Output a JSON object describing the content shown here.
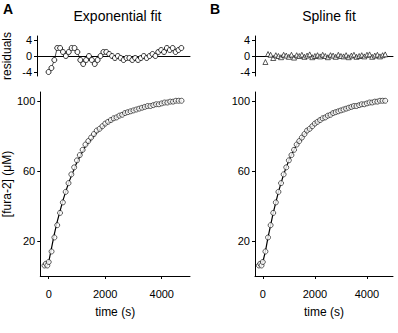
{
  "chart_data": [
    {
      "type": "line",
      "title": "Exponential fit",
      "annotations": [
        "A"
      ],
      "y_label": "residuals",
      "tick_labels": "y",
      "grid": false,
      "x": [
        100,
        200,
        300,
        400,
        500,
        600,
        700,
        800,
        900,
        1000,
        1100,
        1200,
        1300,
        1400,
        1500,
        1600,
        1700,
        1800,
        1900,
        2000,
        2100,
        2200,
        2300,
        2400,
        2500,
        2600,
        2700,
        2800,
        2900,
        3000,
        3100,
        3200,
        3300,
        3400,
        3500,
        3600,
        3700,
        3800,
        3900,
        4000,
        4100,
        4200,
        4300,
        4400,
        4500,
        4600,
        4700
      ],
      "xlim": [
        -300,
        5000
      ],
      "ylim": [
        -5,
        5
      ],
      "yticks": [
        -4,
        0,
        4
      ],
      "series": [
        {
          "type": "line",
          "marker": "circle",
          "values": [
            -4,
            -3,
            -1,
            2,
            2,
            1,
            0,
            1,
            2,
            2,
            1,
            -1,
            -2,
            -1,
            0,
            -1,
            -2,
            -1,
            0,
            1,
            1,
            0.5,
            0,
            -0.5,
            0,
            -0.5,
            -1,
            -0.5,
            -0.5,
            -1,
            -0.5,
            -1,
            -0.5,
            0,
            -0.5,
            0,
            0.5,
            0,
            1,
            1.5,
            1,
            2,
            1.5,
            2,
            1,
            1.5,
            2
          ]
        }
      ]
    },
    {
      "type": "scatter",
      "y_label": "[fura-2] (μM)",
      "x_label": "time (s)",
      "grid": false,
      "x": [
        -150,
        -100,
        -50,
        0,
        100,
        200,
        300,
        400,
        500,
        600,
        700,
        800,
        900,
        1000,
        1100,
        1200,
        1300,
        1400,
        1500,
        1600,
        1700,
        1800,
        1900,
        2000,
        2100,
        2200,
        2300,
        2400,
        2500,
        2600,
        2700,
        2800,
        2900,
        3000,
        3100,
        3200,
        3300,
        3400,
        3500,
        3600,
        3700,
        3800,
        3900,
        4000,
        4100,
        4200,
        4300,
        4400,
        4500,
        4600,
        4700
      ],
      "xlim": [
        -300,
        5000
      ],
      "xticks": [
        0,
        2000,
        4000
      ],
      "ylim": [
        0,
        105
      ],
      "yticks": [
        20,
        60,
        100
      ],
      "series": [
        {
          "type": "scatter",
          "marker": "circle",
          "values": [
            6,
            7,
            6,
            8,
            14,
            22,
            29,
            36,
            42,
            48,
            53,
            58,
            62,
            66,
            69,
            72,
            75,
            77,
            79,
            81,
            83,
            84,
            85.5,
            87,
            88,
            89,
            90,
            90.5,
            91.5,
            92,
            93,
            93.5,
            94,
            94.5,
            95,
            95.5,
            96,
            96.5,
            97,
            97,
            97.5,
            98,
            98,
            98.5,
            99,
            99,
            99.5,
            99.5,
            100,
            100,
            100
          ]
        },
        {
          "type": "line",
          "values": [
            null,
            null,
            null,
            8,
            16,
            24,
            31,
            37,
            43,
            48,
            53,
            57,
            61,
            65,
            68,
            71,
            74,
            76,
            78,
            80,
            82,
            83.5,
            85,
            86.5,
            87.5,
            88.5,
            89.5,
            90.5,
            91.5,
            92,
            93,
            93.5,
            94,
            94.5,
            95,
            95.5,
            96,
            96.5,
            97,
            97.3,
            97.6,
            98,
            98.3,
            98.6,
            98.9,
            99.1,
            99.3,
            99.5,
            99.7,
            99.8,
            100
          ]
        }
      ]
    },
    {
      "type": "scatter",
      "title": "Spline fit",
      "annotations": [
        "B"
      ],
      "tick_labels": "y",
      "grid": false,
      "x": [
        100,
        200,
        300,
        400,
        500,
        600,
        700,
        800,
        900,
        1000,
        1100,
        1200,
        1300,
        1400,
        1500,
        1600,
        1700,
        1800,
        1900,
        2000,
        2100,
        2200,
        2300,
        2400,
        2500,
        2600,
        2700,
        2800,
        2900,
        3000,
        3100,
        3200,
        3300,
        3400,
        3500,
        3600,
        3700,
        3800,
        3900,
        4000,
        4100,
        4200,
        4300,
        4400,
        4500,
        4600,
        4700
      ],
      "xlim": [
        -300,
        5000
      ],
      "ylim": [
        -5,
        5
      ],
      "yticks": [
        -4,
        0,
        4
      ],
      "series": [
        {
          "type": "scatter",
          "marker": "triangle",
          "values": [
            -1.5,
            0.5,
            0.3,
            -0.5,
            0.2,
            0,
            -0.3,
            0.3,
            0.1,
            -0.2,
            0.3,
            -0.4,
            0.2,
            0,
            0.3,
            -0.2,
            0.1,
            0.4,
            -0.3,
            0,
            0.2,
            -0.1,
            0.3,
            0,
            -0.3,
            0.2,
            0.1,
            -0.2,
            0.3,
            0,
            -0.1,
            0.2,
            -0.3,
            0.1,
            0.3,
            -0.2,
            0,
            0.2,
            -0.1,
            0.3,
            0.4,
            -0.2,
            0.1,
            0.3,
            -0.1,
            0.2,
            0.4
          ]
        }
      ]
    },
    {
      "type": "scatter",
      "x_label": "time (s)",
      "grid": false,
      "x": [
        -150,
        -100,
        -50,
        0,
        100,
        200,
        300,
        400,
        500,
        600,
        700,
        800,
        900,
        1000,
        1100,
        1200,
        1300,
        1400,
        1500,
        1600,
        1700,
        1800,
        1900,
        2000,
        2100,
        2200,
        2300,
        2400,
        2500,
        2600,
        2700,
        2800,
        2900,
        3000,
        3100,
        3200,
        3300,
        3400,
        3500,
        3600,
        3700,
        3800,
        3900,
        4000,
        4100,
        4200,
        4300,
        4400,
        4500,
        4600,
        4700
      ],
      "xlim": [
        -300,
        5000
      ],
      "xticks": [
        0,
        2000,
        4000
      ],
      "ylim": [
        0,
        105
      ],
      "yticks": [
        20,
        60,
        100
      ],
      "series": [
        {
          "type": "scatter",
          "marker": "circle",
          "values": [
            6,
            7,
            6,
            8,
            14,
            22,
            29,
            36,
            42,
            48,
            53,
            58,
            62,
            66,
            69,
            72,
            75,
            77,
            79,
            81,
            83,
            84,
            85.5,
            87,
            88,
            89,
            90,
            90.5,
            91.5,
            92,
            93,
            93.5,
            94,
            94.5,
            95,
            95.5,
            96,
            96.5,
            97,
            97,
            97.5,
            98,
            98,
            98.5,
            99,
            99,
            99.5,
            99.5,
            100,
            100,
            100
          ]
        },
        {
          "type": "line",
          "values": [
            null,
            null,
            null,
            8,
            14,
            22,
            29,
            36,
            42,
            48,
            53,
            58,
            62,
            66,
            69,
            72,
            75,
            77,
            79,
            81,
            83,
            84,
            85.5,
            87,
            88,
            89,
            90,
            90.5,
            91.5,
            92,
            93,
            93.5,
            94,
            94.5,
            95,
            95.5,
            96,
            96.5,
            97,
            97,
            97.5,
            98,
            98,
            98.5,
            99,
            99,
            99.5,
            99.5,
            100,
            100,
            100
          ]
        }
      ]
    }
  ]
}
